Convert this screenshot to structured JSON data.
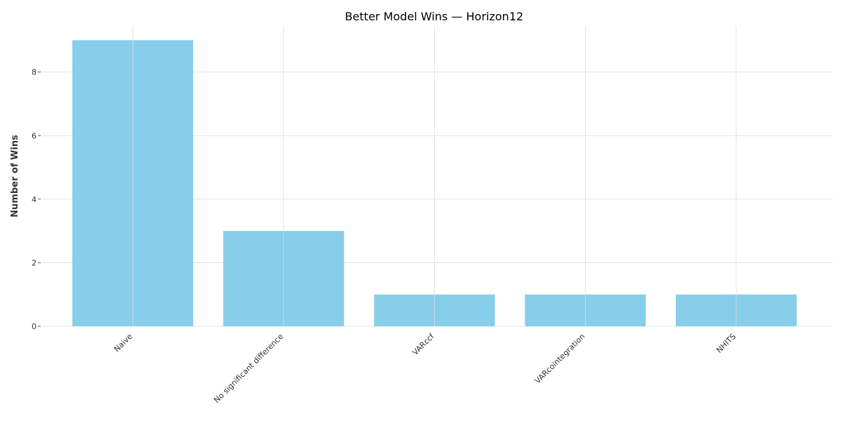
{
  "chart_data": {
    "type": "bar",
    "title": "Better Model Wins — Horizon12",
    "xlabel": "",
    "ylabel": "Number of Wins",
    "categories": [
      "Naive",
      "No significant difference",
      "VARccf",
      "VARcointegration",
      "NHITS"
    ],
    "values": [
      9,
      3,
      1,
      1,
      1
    ],
    "ylim": [
      0,
      9.45
    ],
    "yticks": [
      0,
      2,
      4,
      6,
      8
    ],
    "bar_color": "#87CEEB",
    "grid": true,
    "legend": "none"
  }
}
